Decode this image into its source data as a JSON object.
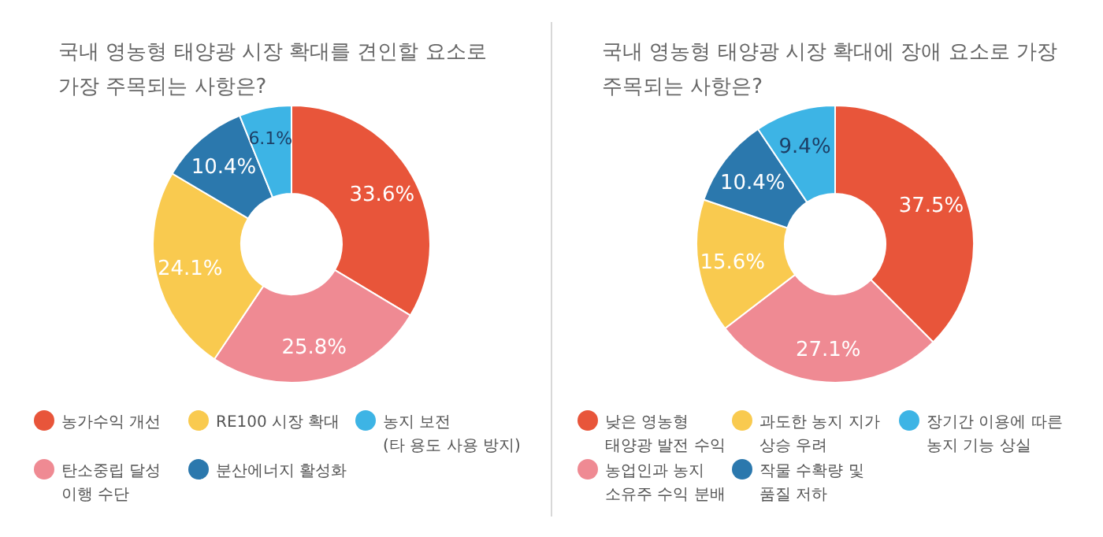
{
  "chart_data": [
    {
      "type": "donut",
      "title": "국내 영농형 태양광 시장 확대를 견인할 요소로\n가장 주목되는 사항은?",
      "categories": [
        "농가수익 개선",
        "탄소중립 달성\n이행 수단",
        "RE100 시장 확대",
        "분산에너지 활성화",
        "농지 보전\n(타 용도 사용 방지)"
      ],
      "values": [
        33.6,
        25.8,
        24.1,
        10.4,
        6.1
      ],
      "value_labels": [
        "33.6%",
        "25.8%",
        "24.1%",
        "10.4%",
        "6.1%"
      ],
      "colors": [
        "#e8553a",
        "#ef8a93",
        "#f9ca4f",
        "#2b78ad",
        "#3db4e5"
      ],
      "legend": "bottom"
    },
    {
      "type": "donut",
      "title": "국내 영농형 태양광 시장 확대에 장애 요소로 가장\n주목되는 사항은?",
      "categories": [
        "낮은 영농형\n태양광 발전 수익",
        "농업인과 농지\n소유주 수익 분배",
        "과도한 농지 지가\n상승 우려",
        "작물 수확량 및\n품질 저하",
        "장기간 이용에 따른\n농지 기능 상실"
      ],
      "values": [
        37.5,
        27.1,
        15.6,
        10.4,
        9.4
      ],
      "value_labels": [
        "37.5%",
        "27.1%",
        "15.6%",
        "10.4%",
        "9.4%"
      ],
      "colors": [
        "#e8553a",
        "#ef8a93",
        "#f9ca4f",
        "#2b78ad",
        "#3db4e5"
      ],
      "legend": "bottom"
    }
  ]
}
